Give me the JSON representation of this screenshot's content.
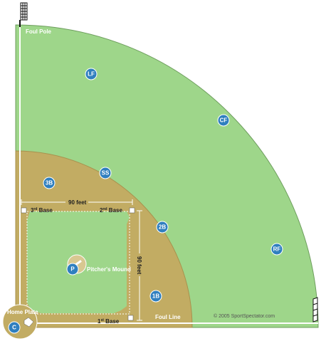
{
  "labels": {
    "foul_pole": "Foul Pole",
    "home_plate": "Home Plate",
    "third_base_num": "3",
    "third_base_sup": "rd",
    "third_base_word": " Base",
    "second_base_num": "2",
    "second_base_sup": "nd",
    "second_base_word": " Base",
    "first_base_num": "1",
    "first_base_sup": "st",
    "first_base_word": " Base",
    "distance_top": "90 feet",
    "distance_right": "90 feet",
    "pitchers_mound": "Pitcher's Mound",
    "foul_line": "Foul Line",
    "copyright": "© 2005 SportSpectator.com"
  },
  "positions": [
    {
      "id": "LF",
      "label": "LF"
    },
    {
      "id": "CF",
      "label": "CF"
    },
    {
      "id": "RF",
      "label": "RF"
    },
    {
      "id": "SS",
      "label": "SS"
    },
    {
      "id": "3B",
      "label": "3B"
    },
    {
      "id": "2B",
      "label": "2B"
    },
    {
      "id": "1B",
      "label": "1B"
    },
    {
      "id": "P",
      "label": "P"
    },
    {
      "id": "C",
      "label": "C"
    }
  ],
  "colors": {
    "outfield_grass": "#9ed68a",
    "infield_dirt": "#c2ac63",
    "player_marker": "#2f7fbf",
    "lines": "#ffffff"
  }
}
